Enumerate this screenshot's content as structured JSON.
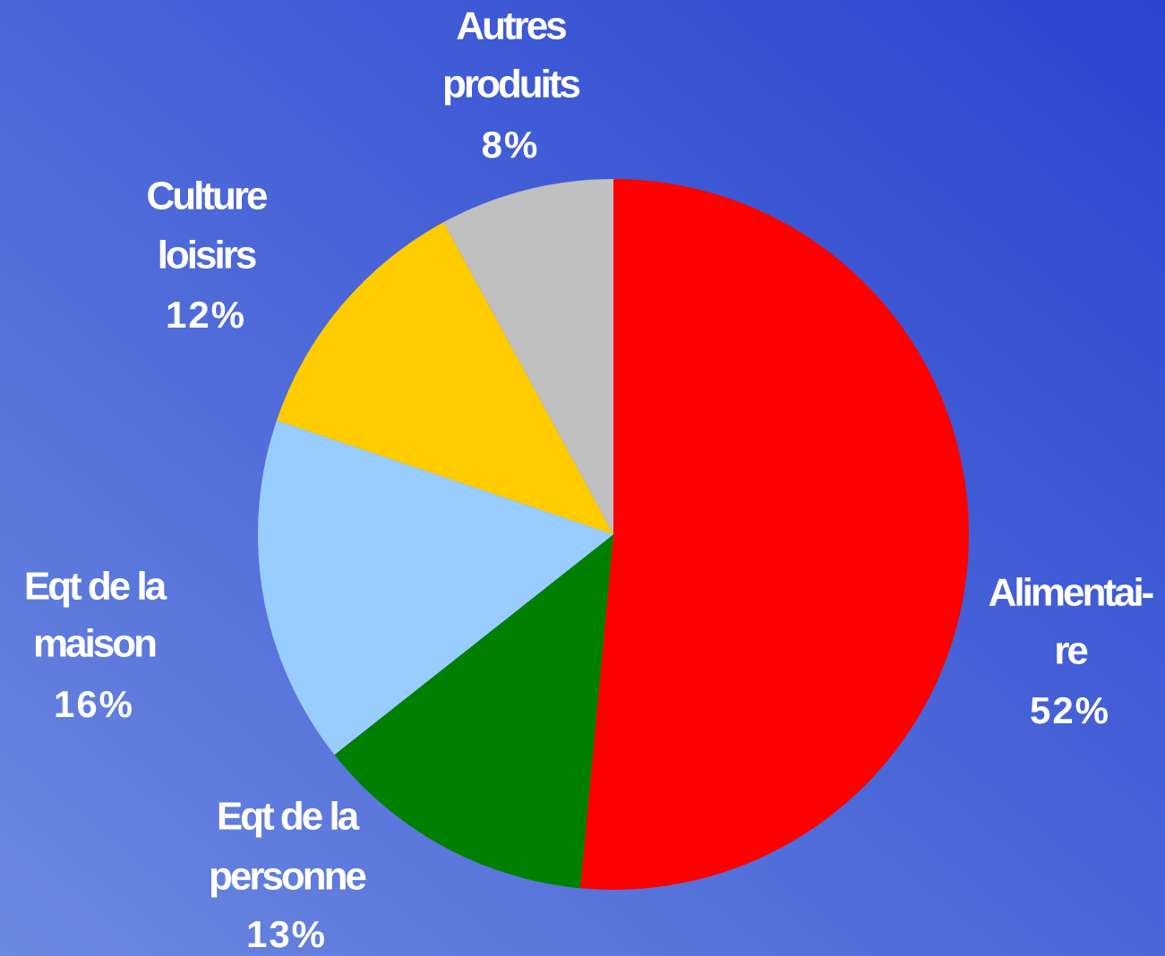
{
  "chart_data": {
    "type": "pie",
    "categories": [
      [
        "Alimentai-",
        "re"
      ],
      [
        "Eqt de la",
        "personne"
      ],
      [
        "Eqt de la",
        "maison"
      ],
      [
        "Culture",
        "loisirs"
      ],
      [
        "Autres",
        "produits"
      ]
    ],
    "values": [
      52,
      13,
      16,
      12,
      8
    ],
    "value_labels": [
      "52%",
      "13%",
      "16%",
      "12%",
      "8%"
    ],
    "colors": [
      "#ff0000",
      "#008000",
      "#99ccff",
      "#ffcc00",
      "#c0c0c0"
    ]
  }
}
